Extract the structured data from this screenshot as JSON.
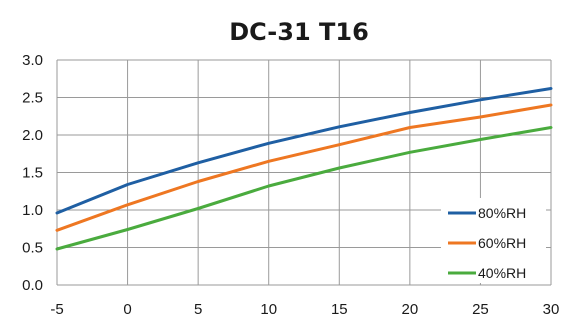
{
  "chart_data": {
    "type": "line",
    "title": "DC-31 T16",
    "xlabel": "",
    "ylabel": "",
    "x": [
      -5,
      0,
      5,
      10,
      15,
      20,
      25,
      30
    ],
    "xlim": [
      -5,
      30
    ],
    "ylim": [
      0,
      3
    ],
    "x_ticks": [
      "-5",
      "0",
      "5",
      "10",
      "15",
      "20",
      "25",
      "30"
    ],
    "y_ticks": [
      "0.0",
      "0.5",
      "1.0",
      "1.5",
      "2.0",
      "2.5",
      "3.0"
    ],
    "grid": true,
    "legend_position": "bottom-right",
    "series": [
      {
        "name": "80%RH",
        "color": "#1f5fa3",
        "values": [
          0.96,
          1.34,
          1.63,
          1.89,
          2.11,
          2.3,
          2.47,
          2.62
        ]
      },
      {
        "name": "60%RH",
        "color": "#ee7722",
        "values": [
          0.73,
          1.07,
          1.38,
          1.65,
          1.87,
          2.1,
          2.24,
          2.4
        ]
      },
      {
        "name": "40%RH",
        "color": "#4aab3e",
        "values": [
          0.48,
          0.74,
          1.02,
          1.32,
          1.56,
          1.77,
          1.94,
          2.1
        ]
      }
    ]
  }
}
